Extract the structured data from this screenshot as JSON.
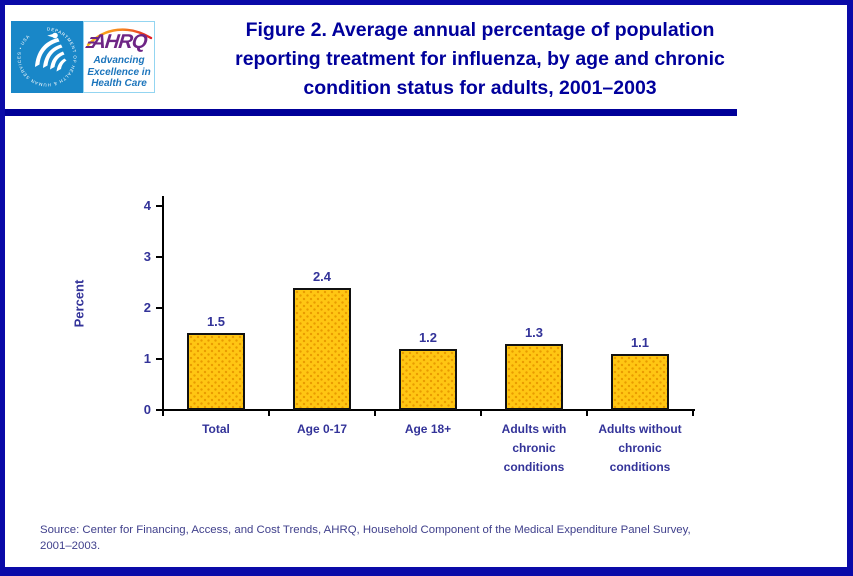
{
  "header": {
    "logo": {
      "hhs_seal_text": "DEPARTMENT OF HEALTH & HUMAN SERVICES • USA",
      "ahrq_acronym": "AHRQ",
      "ahrq_tagline_lines": [
        "Advancing",
        "Excellence in",
        "Health Care"
      ]
    },
    "title_lines": [
      "Figure 2. Average annual percentage of population",
      "reporting treatment for influenza, by age and chronic",
      "condition status for adults, 2001–2003"
    ],
    "title_full": "Figure 2. Average annual percentage of population reporting treatment for influenza, by age and chronic condition status for adults, 2001–2003"
  },
  "chart_data": {
    "type": "bar",
    "title": "",
    "categories": [
      "Total",
      "Age 0-17",
      "Age 18+",
      "Adults with chronic conditions",
      "Adults without chronic conditions"
    ],
    "values": [
      1.5,
      2.4,
      1.2,
      1.3,
      1.1
    ],
    "value_labels": [
      "1.5",
      "2.4",
      "1.2",
      "1.3",
      "1.1"
    ],
    "xlabel": "",
    "ylabel": "Percent",
    "ylim": [
      0,
      4
    ],
    "yticks": [
      0,
      1,
      2,
      3,
      4
    ],
    "grid": false,
    "legend": "none",
    "bar_fill": "#FFC613",
    "bar_dot_color": "#E99B00",
    "bar_border_color": "#111111",
    "axis_color": "#000000",
    "label_color": "#333399"
  },
  "footer": {
    "source_lines": [
      "Source: Center for Financing, Access, and Cost Trends, AHRQ, Household Component of the Medical Expenditure Panel Survey,",
      "2001–2003."
    ],
    "source_full": "Source: Center for Financing, Access, and Cost Trends, AHRQ, Household Component of the Medical Expenditure Panel Survey, 2001–2003."
  },
  "colors": {
    "page_border": "#0A0AA8",
    "divider_bar": "#000099",
    "title_text": "#00009C",
    "chart_labels": "#333399",
    "source_text": "#40408C",
    "hhs_blue": "#1987C8",
    "ahrq_purple": "#6E2585",
    "ahrq_tagline_blue": "#1C75BC",
    "ahrq_border_light_blue": "#93D5F1"
  }
}
